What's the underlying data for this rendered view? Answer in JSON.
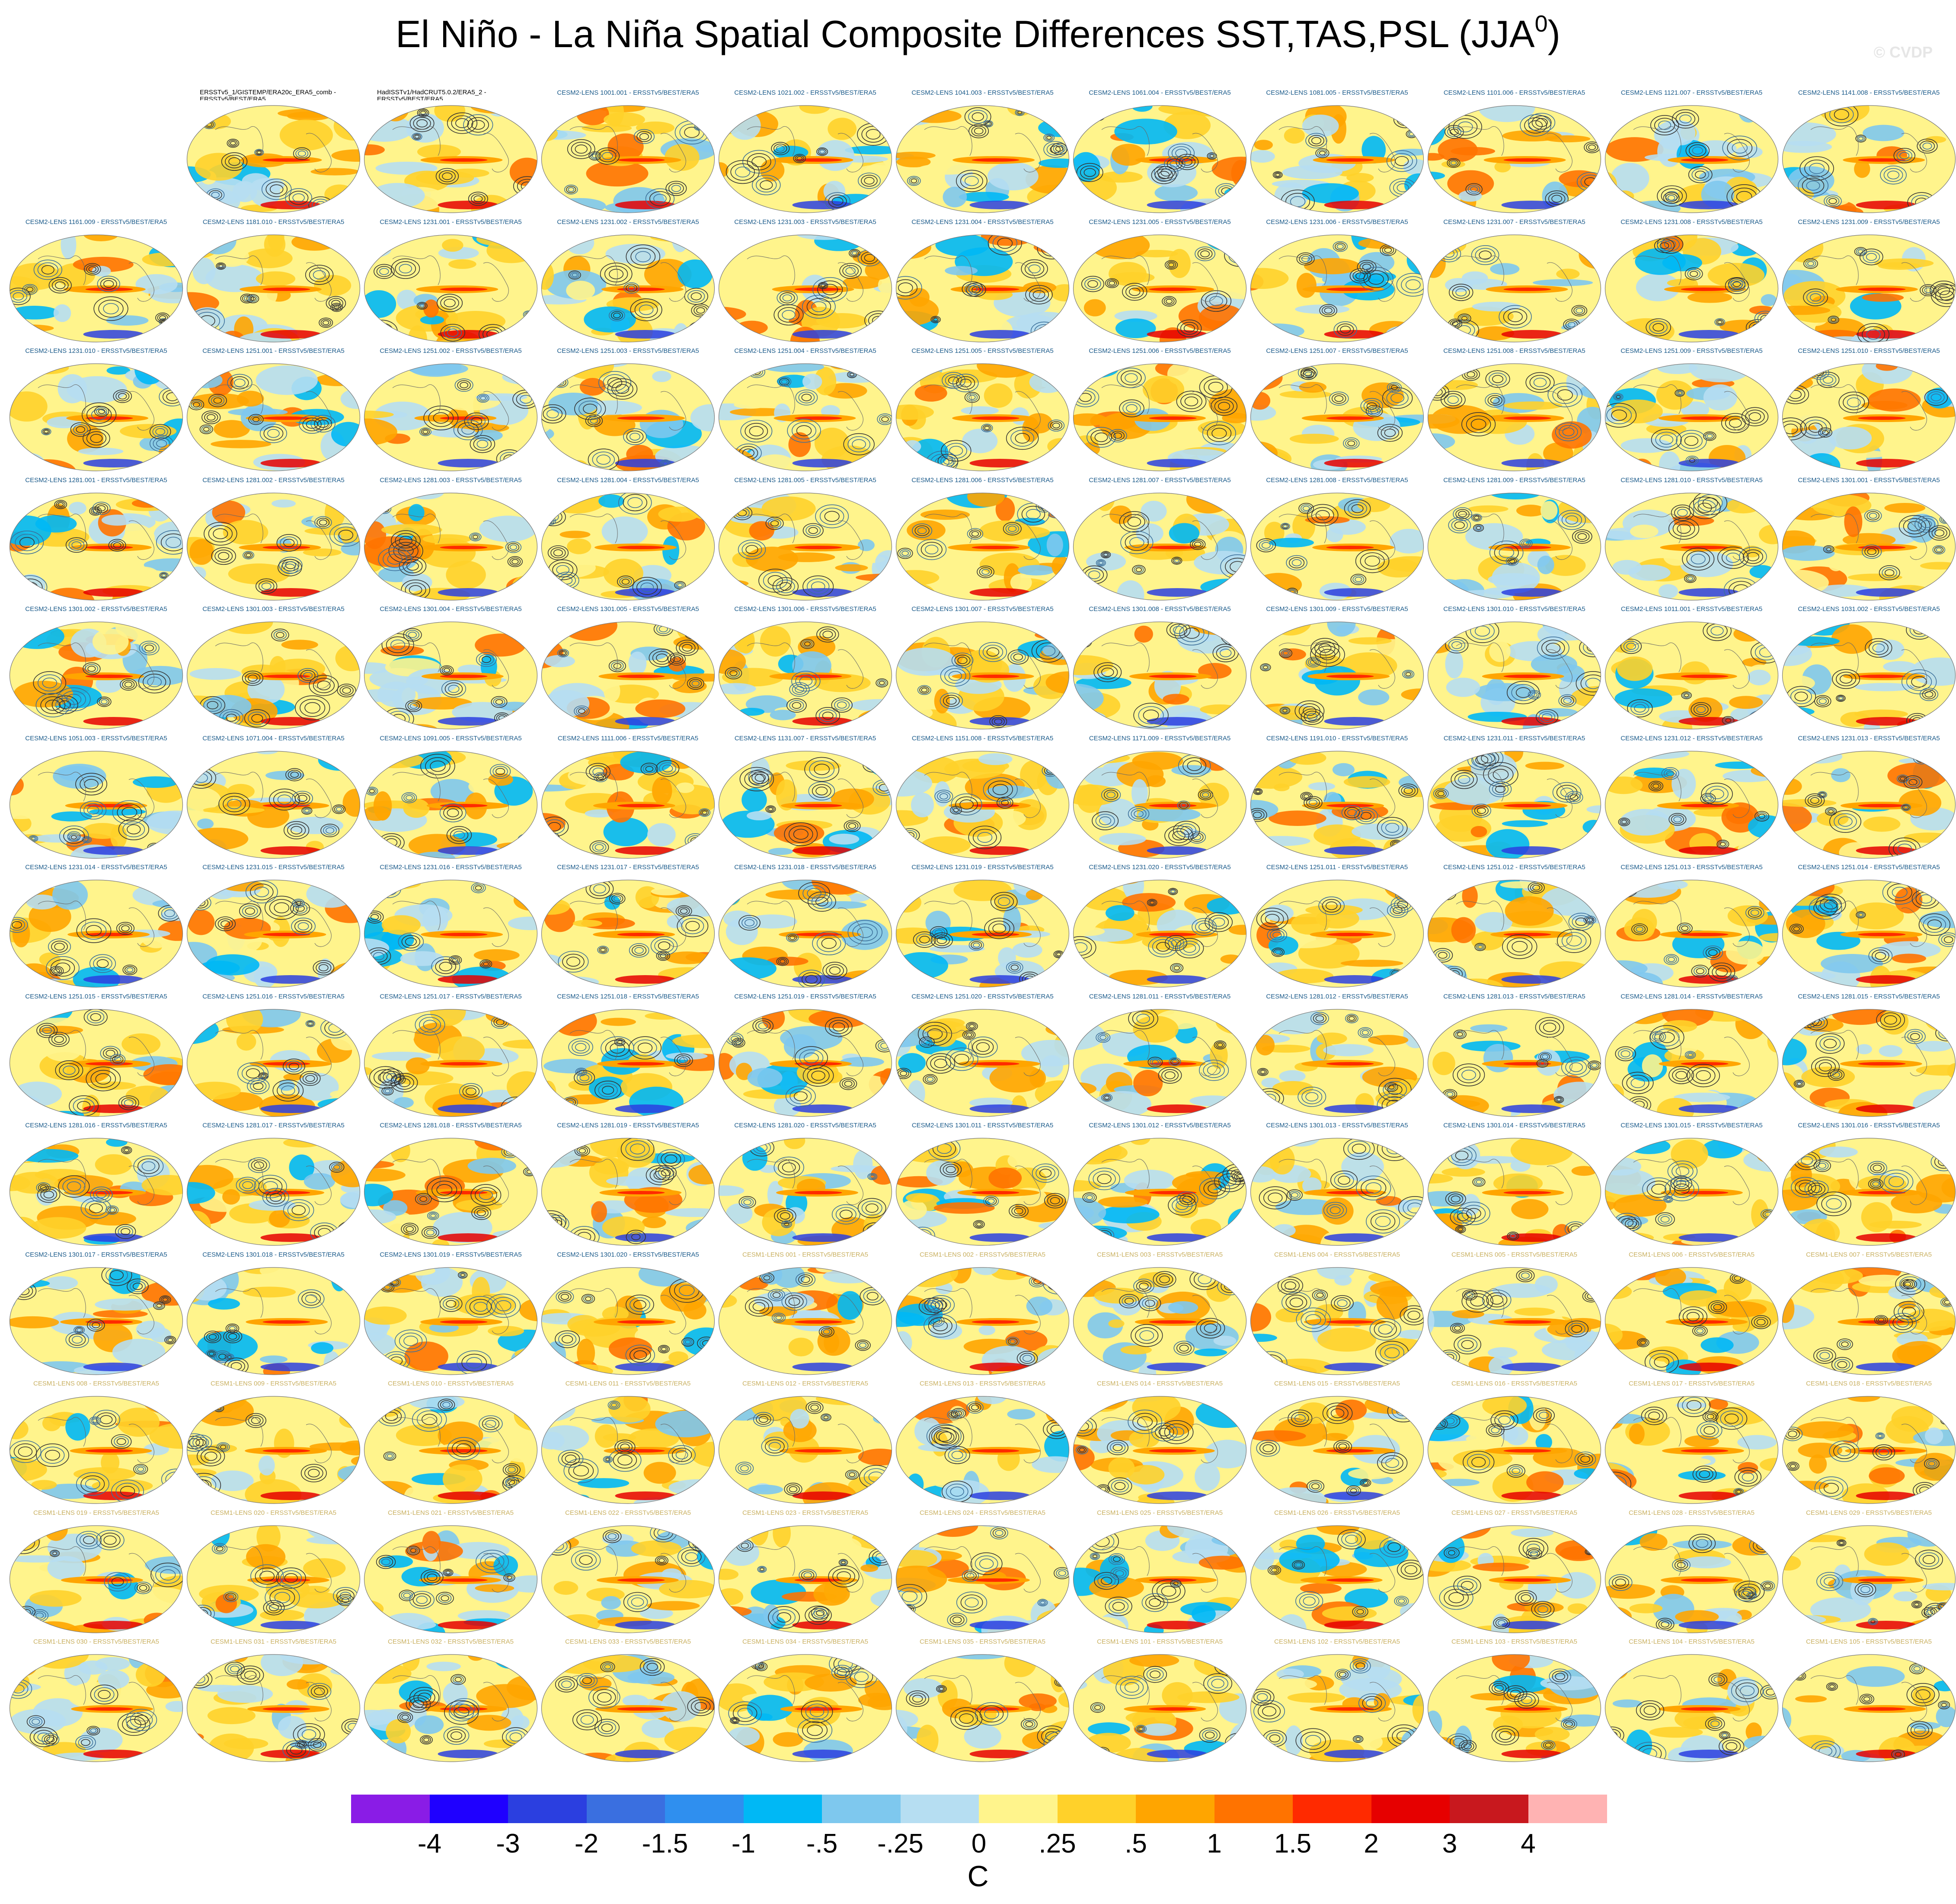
{
  "figure": {
    "title": "El Niño - La Niña Spatial Composite Differences SST,TAS,PSL (JJA",
    "title_superscript": "0",
    "title_close": ")",
    "watermark": "© CVDP"
  },
  "chart_data": {
    "type": "heatmap",
    "panel_kind": "global map (SST/TAS shading, PSL contours)",
    "colorbar": {
      "levels": [
        "-4",
        "-3",
        "-2",
        "-1.5",
        "-1",
        "-.5",
        "-.25",
        "0",
        ".25",
        ".5",
        "1",
        "1.5",
        "2",
        "3",
        "4"
      ],
      "colors": [
        "#8a1ce6",
        "#1f00ff",
        "#2b3fe0",
        "#3a6fe0",
        "#2f8fef",
        "#00b8f5",
        "#7ec8ee",
        "#b6def2",
        "#fff48c",
        "#ffd12a",
        "#ffa500",
        "#ff7300",
        "#ff2a00",
        "#e60000",
        "#c8181e",
        "#ffb3b3"
      ],
      "units": "C"
    },
    "panels": [
      {
        "label": "ERSSTv5_1/GISTEMP/ERA20c_ERA5_comb - ERSSTv5/BEST/ERA5",
        "group": "obs"
      },
      {
        "label": "HadISSTv1/HadCRUT5.0.2/ERA5_2 - ERSSTv5/BEST/ERA5",
        "group": "obs"
      },
      {
        "label": "CESM2-LENS 1001.001 - ERSSTv5/BEST/ERA5",
        "group": "cesm2"
      },
      {
        "label": "CESM2-LENS 1021.002 - ERSSTv5/BEST/ERA5",
        "group": "cesm2"
      },
      {
        "label": "CESM2-LENS 1041.003 - ERSSTv5/BEST/ERA5",
        "group": "cesm2"
      },
      {
        "label": "CESM2-LENS 1061.004 - ERSSTv5/BEST/ERA5",
        "group": "cesm2"
      },
      {
        "label": "CESM2-LENS 1081.005 - ERSSTv5/BEST/ERA5",
        "group": "cesm2"
      },
      {
        "label": "CESM2-LENS 1101.006 - ERSSTv5/BEST/ERA5",
        "group": "cesm2"
      },
      {
        "label": "CESM2-LENS 1121.007 - ERSSTv5/BEST/ERA5",
        "group": "cesm2"
      },
      {
        "label": "CESM2-LENS 1141.008 - ERSSTv5/BEST/ERA5",
        "group": "cesm2"
      },
      {
        "label": "CESM2-LENS 1161.009 - ERSSTv5/BEST/ERA5",
        "group": "cesm2"
      },
      {
        "label": "CESM2-LENS 1181.010 - ERSSTv5/BEST/ERA5",
        "group": "cesm2"
      },
      {
        "label": "CESM2-LENS 1231.001 - ERSSTv5/BEST/ERA5",
        "group": "cesm2"
      },
      {
        "label": "CESM2-LENS 1231.002 - ERSSTv5/BEST/ERA5",
        "group": "cesm2"
      },
      {
        "label": "CESM2-LENS 1231.003 - ERSSTv5/BEST/ERA5",
        "group": "cesm2"
      },
      {
        "label": "CESM2-LENS 1231.004 - ERSSTv5/BEST/ERA5",
        "group": "cesm2"
      },
      {
        "label": "CESM2-LENS 1231.005 - ERSSTv5/BEST/ERA5",
        "group": "cesm2"
      },
      {
        "label": "CESM2-LENS 1231.006 - ERSSTv5/BEST/ERA5",
        "group": "cesm2"
      },
      {
        "label": "CESM2-LENS 1231.007 - ERSSTv5/BEST/ERA5",
        "group": "cesm2"
      },
      {
        "label": "CESM2-LENS 1231.008 - ERSSTv5/BEST/ERA5",
        "group": "cesm2"
      },
      {
        "label": "CESM2-LENS 1231.009 - ERSSTv5/BEST/ERA5",
        "group": "cesm2"
      },
      {
        "label": "CESM2-LENS 1231.010 - ERSSTv5/BEST/ERA5",
        "group": "cesm2"
      },
      {
        "label": "CESM2-LENS 1251.001 - ERSSTv5/BEST/ERA5",
        "group": "cesm2"
      },
      {
        "label": "CESM2-LENS 1251.002 - ERSSTv5/BEST/ERA5",
        "group": "cesm2"
      },
      {
        "label": "CESM2-LENS 1251.003 - ERSSTv5/BEST/ERA5",
        "group": "cesm2"
      },
      {
        "label": "CESM2-LENS 1251.004 - ERSSTv5/BEST/ERA5",
        "group": "cesm2"
      },
      {
        "label": "CESM2-LENS 1251.005 - ERSSTv5/BEST/ERA5",
        "group": "cesm2"
      },
      {
        "label": "CESM2-LENS 1251.006 - ERSSTv5/BEST/ERA5",
        "group": "cesm2"
      },
      {
        "label": "CESM2-LENS 1251.007 - ERSSTv5/BEST/ERA5",
        "group": "cesm2"
      },
      {
        "label": "CESM2-LENS 1251.008 - ERSSTv5/BEST/ERA5",
        "group": "cesm2"
      },
      {
        "label": "CESM2-LENS 1251.009 - ERSSTv5/BEST/ERA5",
        "group": "cesm2"
      },
      {
        "label": "CESM2-LENS 1251.010 - ERSSTv5/BEST/ERA5",
        "group": "cesm2"
      },
      {
        "label": "CESM2-LENS 1281.001 - ERSSTv5/BEST/ERA5",
        "group": "cesm2"
      },
      {
        "label": "CESM2-LENS 1281.002 - ERSSTv5/BEST/ERA5",
        "group": "cesm2"
      },
      {
        "label": "CESM2-LENS 1281.003 - ERSSTv5/BEST/ERA5",
        "group": "cesm2"
      },
      {
        "label": "CESM2-LENS 1281.004 - ERSSTv5/BEST/ERA5",
        "group": "cesm2"
      },
      {
        "label": "CESM2-LENS 1281.005 - ERSSTv5/BEST/ERA5",
        "group": "cesm2"
      },
      {
        "label": "CESM2-LENS 1281.006 - ERSSTv5/BEST/ERA5",
        "group": "cesm2"
      },
      {
        "label": "CESM2-LENS 1281.007 - ERSSTv5/BEST/ERA5",
        "group": "cesm2"
      },
      {
        "label": "CESM2-LENS 1281.008 - ERSSTv5/BEST/ERA5",
        "group": "cesm2"
      },
      {
        "label": "CESM2-LENS 1281.009 - ERSSTv5/BEST/ERA5",
        "group": "cesm2"
      },
      {
        "label": "CESM2-LENS 1281.010 - ERSSTv5/BEST/ERA5",
        "group": "cesm2"
      },
      {
        "label": "CESM2-LENS 1301.001 - ERSSTv5/BEST/ERA5",
        "group": "cesm2"
      },
      {
        "label": "CESM2-LENS 1301.002 - ERSSTv5/BEST/ERA5",
        "group": "cesm2"
      },
      {
        "label": "CESM2-LENS 1301.003 - ERSSTv5/BEST/ERA5",
        "group": "cesm2"
      },
      {
        "label": "CESM2-LENS 1301.004 - ERSSTv5/BEST/ERA5",
        "group": "cesm2"
      },
      {
        "label": "CESM2-LENS 1301.005 - ERSSTv5/BEST/ERA5",
        "group": "cesm2"
      },
      {
        "label": "CESM2-LENS 1301.006 - ERSSTv5/BEST/ERA5",
        "group": "cesm2"
      },
      {
        "label": "CESM2-LENS 1301.007 - ERSSTv5/BEST/ERA5",
        "group": "cesm2"
      },
      {
        "label": "CESM2-LENS 1301.008 - ERSSTv5/BEST/ERA5",
        "group": "cesm2"
      },
      {
        "label": "CESM2-LENS 1301.009 - ERSSTv5/BEST/ERA5",
        "group": "cesm2"
      },
      {
        "label": "CESM2-LENS 1301.010 - ERSSTv5/BEST/ERA5",
        "group": "cesm2"
      },
      {
        "label": "CESM2-LENS 1011.001 - ERSSTv5/BEST/ERA5",
        "group": "cesm2"
      },
      {
        "label": "CESM2-LENS 1031.002 - ERSSTv5/BEST/ERA5",
        "group": "cesm2"
      },
      {
        "label": "CESM2-LENS 1051.003 - ERSSTv5/BEST/ERA5",
        "group": "cesm2"
      },
      {
        "label": "CESM2-LENS 1071.004 - ERSSTv5/BEST/ERA5",
        "group": "cesm2"
      },
      {
        "label": "CESM2-LENS 1091.005 - ERSSTv5/BEST/ERA5",
        "group": "cesm2"
      },
      {
        "label": "CESM2-LENS 1111.006 - ERSSTv5/BEST/ERA5",
        "group": "cesm2"
      },
      {
        "label": "CESM2-LENS 1131.007 - ERSSTv5/BEST/ERA5",
        "group": "cesm2"
      },
      {
        "label": "CESM2-LENS 1151.008 - ERSSTv5/BEST/ERA5",
        "group": "cesm2"
      },
      {
        "label": "CESM2-LENS 1171.009 - ERSSTv5/BEST/ERA5",
        "group": "cesm2"
      },
      {
        "label": "CESM2-LENS 1191.010 - ERSSTv5/BEST/ERA5",
        "group": "cesm2"
      },
      {
        "label": "CESM2-LENS 1231.011 - ERSSTv5/BEST/ERA5",
        "group": "cesm2"
      },
      {
        "label": "CESM2-LENS 1231.012 - ERSSTv5/BEST/ERA5",
        "group": "cesm2"
      },
      {
        "label": "CESM2-LENS 1231.013 - ERSSTv5/BEST/ERA5",
        "group": "cesm2"
      },
      {
        "label": "CESM2-LENS 1231.014 - ERSSTv5/BEST/ERA5",
        "group": "cesm2"
      },
      {
        "label": "CESM2-LENS 1231.015 - ERSSTv5/BEST/ERA5",
        "group": "cesm2"
      },
      {
        "label": "CESM2-LENS 1231.016 - ERSSTv5/BEST/ERA5",
        "group": "cesm2"
      },
      {
        "label": "CESM2-LENS 1231.017 - ERSSTv5/BEST/ERA5",
        "group": "cesm2"
      },
      {
        "label": "CESM2-LENS 1231.018 - ERSSTv5/BEST/ERA5",
        "group": "cesm2"
      },
      {
        "label": "CESM2-LENS 1231.019 - ERSSTv5/BEST/ERA5",
        "group": "cesm2"
      },
      {
        "label": "CESM2-LENS 1231.020 - ERSSTv5/BEST/ERA5",
        "group": "cesm2"
      },
      {
        "label": "CESM2-LENS 1251.011 - ERSSTv5/BEST/ERA5",
        "group": "cesm2"
      },
      {
        "label": "CESM2-LENS 1251.012 - ERSSTv5/BEST/ERA5",
        "group": "cesm2"
      },
      {
        "label": "CESM2-LENS 1251.013 - ERSSTv5/BEST/ERA5",
        "group": "cesm2"
      },
      {
        "label": "CESM2-LENS 1251.014 - ERSSTv5/BEST/ERA5",
        "group": "cesm2"
      },
      {
        "label": "CESM2-LENS 1251.015 - ERSSTv5/BEST/ERA5",
        "group": "cesm2"
      },
      {
        "label": "CESM2-LENS 1251.016 - ERSSTv5/BEST/ERA5",
        "group": "cesm2"
      },
      {
        "label": "CESM2-LENS 1251.017 - ERSSTv5/BEST/ERA5",
        "group": "cesm2"
      },
      {
        "label": "CESM2-LENS 1251.018 - ERSSTv5/BEST/ERA5",
        "group": "cesm2"
      },
      {
        "label": "CESM2-LENS 1251.019 - ERSSTv5/BEST/ERA5",
        "group": "cesm2"
      },
      {
        "label": "CESM2-LENS 1251.020 - ERSSTv5/BEST/ERA5",
        "group": "cesm2"
      },
      {
        "label": "CESM2-LENS 1281.011 - ERSSTv5/BEST/ERA5",
        "group": "cesm2"
      },
      {
        "label": "CESM2-LENS 1281.012 - ERSSTv5/BEST/ERA5",
        "group": "cesm2"
      },
      {
        "label": "CESM2-LENS 1281.013 - ERSSTv5/BEST/ERA5",
        "group": "cesm2"
      },
      {
        "label": "CESM2-LENS 1281.014 - ERSSTv5/BEST/ERA5",
        "group": "cesm2"
      },
      {
        "label": "CESM2-LENS 1281.015 - ERSSTv5/BEST/ERA5",
        "group": "cesm2"
      },
      {
        "label": "CESM2-LENS 1281.016 - ERSSTv5/BEST/ERA5",
        "group": "cesm2"
      },
      {
        "label": "CESM2-LENS 1281.017 - ERSSTv5/BEST/ERA5",
        "group": "cesm2"
      },
      {
        "label": "CESM2-LENS 1281.018 - ERSSTv5/BEST/ERA5",
        "group": "cesm2"
      },
      {
        "label": "CESM2-LENS 1281.019 - ERSSTv5/BEST/ERA5",
        "group": "cesm2"
      },
      {
        "label": "CESM2-LENS 1281.020 - ERSSTv5/BEST/ERA5",
        "group": "cesm2"
      },
      {
        "label": "CESM2-LENS 1301.011 - ERSSTv5/BEST/ERA5",
        "group": "cesm2"
      },
      {
        "label": "CESM2-LENS 1301.012 - ERSSTv5/BEST/ERA5",
        "group": "cesm2"
      },
      {
        "label": "CESM2-LENS 1301.013 - ERSSTv5/BEST/ERA5",
        "group": "cesm2"
      },
      {
        "label": "CESM2-LENS 1301.014 - ERSSTv5/BEST/ERA5",
        "group": "cesm2"
      },
      {
        "label": "CESM2-LENS 1301.015 - ERSSTv5/BEST/ERA5",
        "group": "cesm2"
      },
      {
        "label": "CESM2-LENS 1301.016 - ERSSTv5/BEST/ERA5",
        "group": "cesm2"
      },
      {
        "label": "CESM2-LENS 1301.017 - ERSSTv5/BEST/ERA5",
        "group": "cesm2"
      },
      {
        "label": "CESM2-LENS 1301.018 - ERSSTv5/BEST/ERA5",
        "group": "cesm2"
      },
      {
        "label": "CESM2-LENS 1301.019 - ERSSTv5/BEST/ERA5",
        "group": "cesm2"
      },
      {
        "label": "CESM2-LENS 1301.020 - ERSSTv5/BEST/ERA5",
        "group": "cesm2"
      },
      {
        "label": "CESM1-LENS 001 - ERSSTv5/BEST/ERA5",
        "group": "cesm1"
      },
      {
        "label": "CESM1-LENS 002 - ERSSTv5/BEST/ERA5",
        "group": "cesm1"
      },
      {
        "label": "CESM1-LENS 003 - ERSSTv5/BEST/ERA5",
        "group": "cesm1"
      },
      {
        "label": "CESM1-LENS 004 - ERSSTv5/BEST/ERA5",
        "group": "cesm1"
      },
      {
        "label": "CESM1-LENS 005 - ERSSTv5/BEST/ERA5",
        "group": "cesm1"
      },
      {
        "label": "CESM1-LENS 006 - ERSSTv5/BEST/ERA5",
        "group": "cesm1"
      },
      {
        "label": "CESM1-LENS 007 - ERSSTv5/BEST/ERA5",
        "group": "cesm1"
      },
      {
        "label": "CESM1-LENS 008 - ERSSTv5/BEST/ERA5",
        "group": "cesm1"
      },
      {
        "label": "CESM1-LENS 009 - ERSSTv5/BEST/ERA5",
        "group": "cesm1"
      },
      {
        "label": "CESM1-LENS 010 - ERSSTv5/BEST/ERA5",
        "group": "cesm1"
      },
      {
        "label": "CESM1-LENS 011 - ERSSTv5/BEST/ERA5",
        "group": "cesm1"
      },
      {
        "label": "CESM1-LENS 012 - ERSSTv5/BEST/ERA5",
        "group": "cesm1"
      },
      {
        "label": "CESM1-LENS 013 - ERSSTv5/BEST/ERA5",
        "group": "cesm1"
      },
      {
        "label": "CESM1-LENS 014 - ERSSTv5/BEST/ERA5",
        "group": "cesm1"
      },
      {
        "label": "CESM1-LENS 015 - ERSSTv5/BEST/ERA5",
        "group": "cesm1"
      },
      {
        "label": "CESM1-LENS 016 - ERSSTv5/BEST/ERA5",
        "group": "cesm1"
      },
      {
        "label": "CESM1-LENS 017 - ERSSTv5/BEST/ERA5",
        "group": "cesm1"
      },
      {
        "label": "CESM1-LENS 018 - ERSSTv5/BEST/ERA5",
        "group": "cesm1"
      },
      {
        "label": "CESM1-LENS 019 - ERSSTv5/BEST/ERA5",
        "group": "cesm1"
      },
      {
        "label": "CESM1-LENS 020 - ERSSTv5/BEST/ERA5",
        "group": "cesm1"
      },
      {
        "label": "CESM1-LENS 021 - ERSSTv5/BEST/ERA5",
        "group": "cesm1"
      },
      {
        "label": "CESM1-LENS 022 - ERSSTv5/BEST/ERA5",
        "group": "cesm1"
      },
      {
        "label": "CESM1-LENS 023 - ERSSTv5/BEST/ERA5",
        "group": "cesm1"
      },
      {
        "label": "CESM1-LENS 024 - ERSSTv5/BEST/ERA5",
        "group": "cesm1"
      },
      {
        "label": "CESM1-LENS 025 - ERSSTv5/BEST/ERA5",
        "group": "cesm1"
      },
      {
        "label": "CESM1-LENS 026 - ERSSTv5/BEST/ERA5",
        "group": "cesm1"
      },
      {
        "label": "CESM1-LENS 027 - ERSSTv5/BEST/ERA5",
        "group": "cesm1"
      },
      {
        "label": "CESM1-LENS 028 - ERSSTv5/BEST/ERA5",
        "group": "cesm1"
      },
      {
        "label": "CESM1-LENS 029 - ERSSTv5/BEST/ERA5",
        "group": "cesm1"
      },
      {
        "label": "CESM1-LENS 030 - ERSSTv5/BEST/ERA5",
        "group": "cesm1"
      },
      {
        "label": "CESM1-LENS 031 - ERSSTv5/BEST/ERA5",
        "group": "cesm1"
      },
      {
        "label": "CESM1-LENS 032 - ERSSTv5/BEST/ERA5",
        "group": "cesm1"
      },
      {
        "label": "CESM1-LENS 033 - ERSSTv5/BEST/ERA5",
        "group": "cesm1"
      },
      {
        "label": "CESM1-LENS 034 - ERSSTv5/BEST/ERA5",
        "group": "cesm1"
      },
      {
        "label": "CESM1-LENS 035 - ERSSTv5/BEST/ERA5",
        "group": "cesm1"
      },
      {
        "label": "CESM1-LENS 101 - ERSSTv5/BEST/ERA5",
        "group": "cesm1"
      },
      {
        "label": "CESM1-LENS 102 - ERSSTv5/BEST/ERA5",
        "group": "cesm1"
      },
      {
        "label": "CESM1-LENS 103 - ERSSTv5/BEST/ERA5",
        "group": "cesm1"
      },
      {
        "label": "CESM1-LENS 104 - ERSSTv5/BEST/ERA5",
        "group": "cesm1"
      },
      {
        "label": "CESM1-LENS 105 - ERSSTv5/BEST/ERA5",
        "group": "cesm1"
      }
    ]
  }
}
